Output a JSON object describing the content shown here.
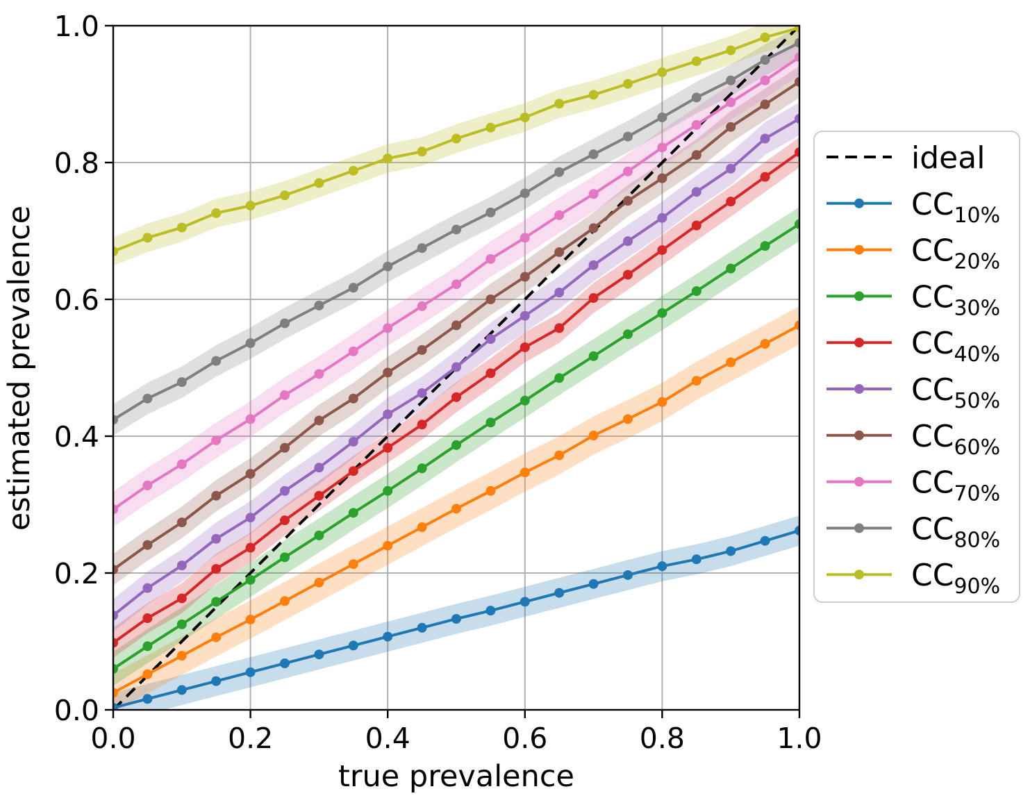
{
  "chart_data": {
    "type": "line",
    "title": "",
    "xlabel": "true prevalence",
    "ylabel": "estimated prevalence",
    "xlim": [
      0.0,
      1.0
    ],
    "ylim": [
      0.0,
      1.0
    ],
    "grid": true,
    "legend_position": "right-outside",
    "grid_color": "#b0b0b0",
    "spine_color": "#000000",
    "x_ticks": [
      "0.0",
      "0.2",
      "0.4",
      "0.6",
      "0.8",
      "1.0"
    ],
    "y_ticks": [
      "0.0",
      "0.2",
      "0.4",
      "0.6",
      "0.8",
      "1.0"
    ],
    "x": [
      0.0,
      0.05,
      0.1,
      0.15,
      0.2,
      0.25,
      0.3,
      0.35,
      0.4,
      0.45,
      0.5,
      0.55,
      0.6,
      0.65,
      0.7,
      0.75,
      0.8,
      0.85,
      0.9,
      0.95,
      1.0
    ],
    "ideal": {
      "label": "ideal",
      "color": "#000000",
      "style": "dashed",
      "from": [
        0.0,
        0.0
      ],
      "to": [
        1.0,
        1.0
      ]
    },
    "series": [
      {
        "id": "cc-10",
        "label_main": "CC",
        "label_sub": "10%",
        "name": "CC_10%",
        "color": "#1f77b4",
        "band": 0.022,
        "values": [
          0.003,
          0.016,
          0.029,
          0.042,
          0.055,
          0.068,
          0.081,
          0.094,
          0.107,
          0.12,
          0.133,
          0.145,
          0.158,
          0.171,
          0.184,
          0.197,
          0.21,
          0.22,
          0.232,
          0.247,
          0.262
        ]
      },
      {
        "id": "cc-20",
        "label_main": "CC",
        "label_sub": "20%",
        "name": "CC_20%",
        "color": "#ff7f0e",
        "band": 0.028,
        "values": [
          0.025,
          0.052,
          0.079,
          0.106,
          0.132,
          0.159,
          0.186,
          0.213,
          0.24,
          0.267,
          0.294,
          0.32,
          0.347,
          0.372,
          0.401,
          0.425,
          0.45,
          0.481,
          0.508,
          0.535,
          0.562
        ]
      },
      {
        "id": "cc-30",
        "label_main": "CC",
        "label_sub": "30%",
        "name": "CC_30%",
        "color": "#2ca02c",
        "band": 0.025,
        "values": [
          0.06,
          0.093,
          0.125,
          0.158,
          0.19,
          0.223,
          0.255,
          0.288,
          0.32,
          0.353,
          0.387,
          0.42,
          0.452,
          0.485,
          0.517,
          0.549,
          0.58,
          0.612,
          0.645,
          0.678,
          0.71
        ]
      },
      {
        "id": "cc-40",
        "label_main": "CC",
        "label_sub": "40%",
        "name": "CC_40%",
        "color": "#d62728",
        "band": 0.022,
        "values": [
          0.098,
          0.134,
          0.163,
          0.206,
          0.237,
          0.277,
          0.313,
          0.349,
          0.383,
          0.417,
          0.457,
          0.492,
          0.53,
          0.558,
          0.602,
          0.636,
          0.672,
          0.708,
          0.743,
          0.779,
          0.815
        ]
      },
      {
        "id": "cc-50",
        "label_main": "CC",
        "label_sub": "50%",
        "name": "CC_50%",
        "color": "#9467bd",
        "band": 0.024,
        "values": [
          0.138,
          0.178,
          0.211,
          0.25,
          0.281,
          0.32,
          0.354,
          0.392,
          0.432,
          0.463,
          0.501,
          0.542,
          0.576,
          0.61,
          0.65,
          0.685,
          0.719,
          0.757,
          0.791,
          0.835,
          0.864
        ]
      },
      {
        "id": "cc-60",
        "label_main": "CC",
        "label_sub": "60%",
        "name": "CC_60%",
        "color": "#8c564b",
        "band": 0.023,
        "values": [
          0.205,
          0.241,
          0.274,
          0.313,
          0.345,
          0.383,
          0.423,
          0.455,
          0.493,
          0.526,
          0.562,
          0.6,
          0.633,
          0.669,
          0.704,
          0.744,
          0.777,
          0.811,
          0.852,
          0.885,
          0.918
        ]
      },
      {
        "id": "cc-70",
        "label_main": "CC",
        "label_sub": "70%",
        "name": "CC_70%",
        "color": "#e377c2",
        "band": 0.026,
        "values": [
          0.293,
          0.328,
          0.359,
          0.394,
          0.425,
          0.46,
          0.491,
          0.524,
          0.558,
          0.59,
          0.622,
          0.659,
          0.69,
          0.723,
          0.754,
          0.787,
          0.822,
          0.855,
          0.888,
          0.92,
          0.954
        ]
      },
      {
        "id": "cc-80",
        "label_main": "CC",
        "label_sub": "80%",
        "name": "CC_80%",
        "color": "#7f7f7f",
        "band": 0.023,
        "values": [
          0.424,
          0.455,
          0.479,
          0.51,
          0.536,
          0.565,
          0.591,
          0.617,
          0.648,
          0.675,
          0.702,
          0.727,
          0.755,
          0.786,
          0.812,
          0.838,
          0.866,
          0.895,
          0.92,
          0.95,
          0.975
        ]
      },
      {
        "id": "cc-90",
        "label_main": "CC",
        "label_sub": "90%",
        "name": "CC_90%",
        "color": "#bcbd22",
        "band": 0.021,
        "values": [
          0.67,
          0.69,
          0.705,
          0.726,
          0.737,
          0.752,
          0.77,
          0.788,
          0.806,
          0.816,
          0.835,
          0.851,
          0.866,
          0.886,
          0.899,
          0.915,
          0.932,
          0.948,
          0.964,
          0.983,
          0.997
        ]
      }
    ]
  }
}
